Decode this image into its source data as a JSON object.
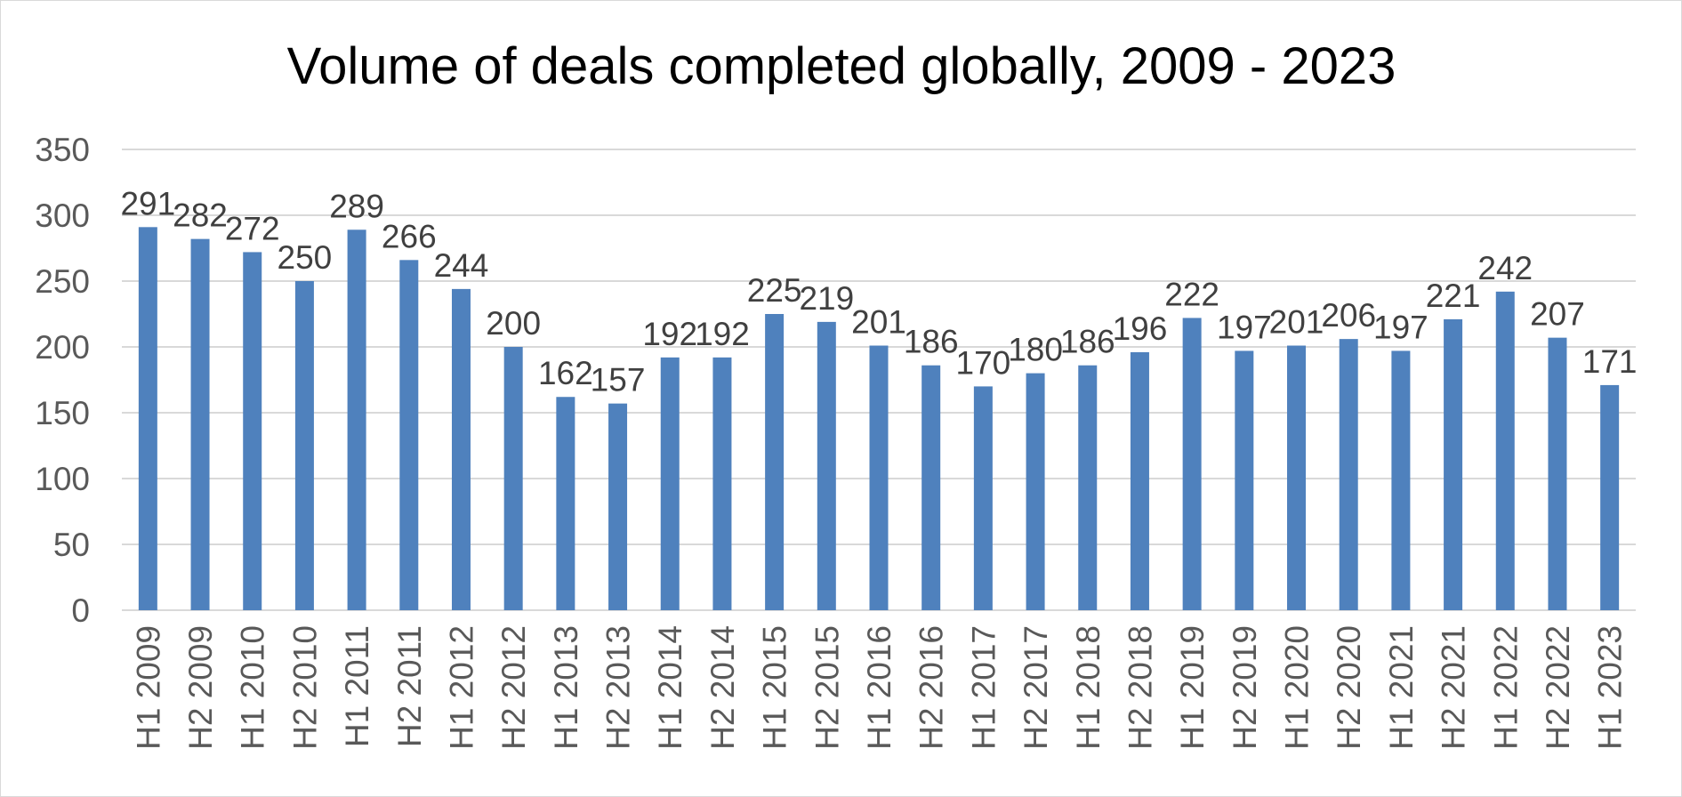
{
  "chart_data": {
    "type": "bar",
    "title": "Volume of deals completed globally, 2009 - 2023",
    "xlabel": "",
    "ylabel": "",
    "ylim": [
      0,
      350
    ],
    "yticks": [
      0,
      50,
      100,
      150,
      200,
      250,
      300,
      350
    ],
    "grid": true,
    "legend": "none",
    "bar_color": "#4f81bd",
    "categories": [
      "H1 2009",
      "H2 2009",
      "H1 2010",
      "H2 2010",
      "H1 2011",
      "H2 2011",
      "H1 2012",
      "H2 2012",
      "H1 2013",
      "H2 2013",
      "H1 2014",
      "H2 2014",
      "H1 2015",
      "H2 2015",
      "H1 2016",
      "H2 2016",
      "H1 2017",
      "H2 2017",
      "H1 2018",
      "H2 2018",
      "H1 2019",
      "H2 2019",
      "H1 2020",
      "H2 2020",
      "H1 2021",
      "H2 2021",
      "H1 2022",
      "H2 2022",
      "H1 2023"
    ],
    "values": [
      291,
      282,
      272,
      250,
      289,
      266,
      244,
      200,
      162,
      157,
      192,
      192,
      225,
      219,
      201,
      186,
      170,
      180,
      186,
      196,
      222,
      197,
      201,
      206,
      197,
      221,
      242,
      207,
      171
    ]
  }
}
